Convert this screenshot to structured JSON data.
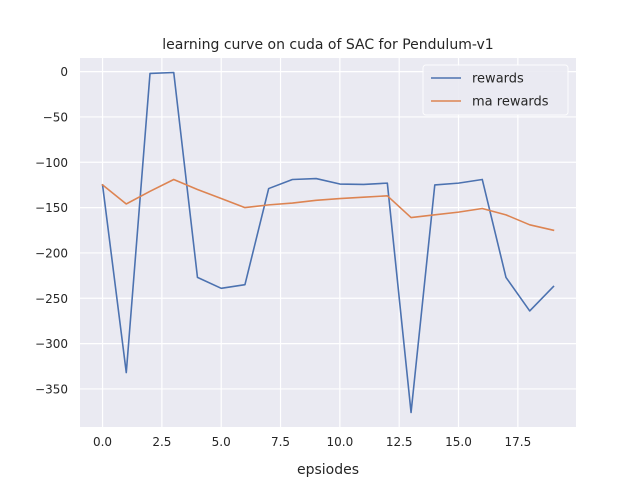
{
  "chart_data": {
    "type": "line",
    "title": "learning curve on cuda of SAC for Pendulum-v1",
    "xlabel": "epsiodes",
    "ylabel": "",
    "xlim": [
      -0.95,
      19.95
    ],
    "ylim": [
      -392,
      15
    ],
    "xticks": [
      0.0,
      2.5,
      5.0,
      7.5,
      10.0,
      12.5,
      15.0,
      17.5
    ],
    "xtick_labels": [
      "0.0",
      "2.5",
      "5.0",
      "7.5",
      "10.0",
      "12.5",
      "15.0",
      "17.5"
    ],
    "yticks": [
      0,
      -50,
      -100,
      -150,
      -200,
      -250,
      -300,
      -350
    ],
    "ytick_labels": [
      "0",
      "−50",
      "−100",
      "−150",
      "−200",
      "−250",
      "−300",
      "−350"
    ],
    "grid": true,
    "legend_position": "top-right",
    "x": [
      0,
      1,
      2,
      3,
      4,
      5,
      6,
      7,
      8,
      9,
      10,
      11,
      12,
      13,
      14,
      15,
      16,
      17,
      18,
      19
    ],
    "series": [
      {
        "name": "rewards",
        "color": "#4c72b0",
        "values": [
          -125,
          -332,
          -2,
          -1,
          -227,
          -239,
          -235,
          -129,
          -119,
          -118,
          -124,
          -124.5,
          -123,
          -376,
          -125,
          -123,
          -119,
          -227,
          -264,
          -237
        ]
      },
      {
        "name": "ma rewards",
        "color": "#dd8452",
        "values": [
          -125,
          -146,
          -132,
          -119,
          -130,
          -140,
          -150,
          -147,
          -145,
          -142,
          -140,
          -138.5,
          -137,
          -161,
          -158,
          -155,
          -151,
          -158,
          -169,
          -175
        ]
      }
    ]
  }
}
